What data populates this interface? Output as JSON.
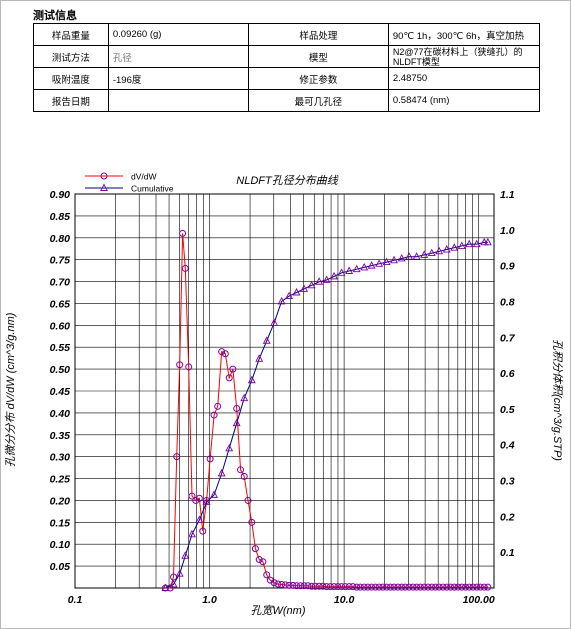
{
  "section_title": "测试信息",
  "info_table": [
    [
      {
        "label": "样品重量",
        "value": "0.09260 (g)"
      },
      {
        "label": "样品处理",
        "value": "90℃ 1h，300℃ 6h，真空加热"
      }
    ],
    [
      {
        "label": "测试方法",
        "value": "孔径"
      },
      {
        "label": "模型",
        "value": "N2@77在碳材料上（狭缝孔）的 NLDFT模型"
      }
    ],
    [
      {
        "label": "吸附温度",
        "value": "-196度"
      },
      {
        "label": "修正参数",
        "value": "2.48750"
      }
    ],
    [
      {
        "label": "报告日期",
        "value": ""
      },
      {
        "label": "最可几孔径",
        "value": "0.58474 (nm)"
      }
    ]
  ],
  "chart_data": {
    "type": "line",
    "title": "NLDFT孔径分布曲线",
    "xlabel": "孔宽W(nm)",
    "ylabel_left": "孔微分分布 dV/dW (cm^3/g.nm)",
    "ylabel_right": "孔积分体积(cm^3/g.STP)",
    "x_scale": "log",
    "xlim": [
      0.1,
      130
    ],
    "ylim_left": [
      0,
      0.9
    ],
    "ylim_right": [
      0,
      1.1
    ],
    "x_ticks": [
      "0.1",
      "1.0",
      "10.0",
      "100.00"
    ],
    "y_ticks_left": [
      "0.05",
      "0.10",
      "0.15",
      "0.20",
      "0.25",
      "0.30",
      "0.35",
      "0.40",
      "0.45",
      "0.50",
      "0.55",
      "0.60",
      "0.65",
      "0.70",
      "0.75",
      "0.80",
      "0.85",
      "0.90"
    ],
    "y_ticks_right": [
      "0.1",
      "0.2",
      "0.3",
      "0.4",
      "0.5",
      "0.6",
      "0.7",
      "0.8",
      "0.9",
      "1.0",
      "1.1"
    ],
    "grid": true,
    "legend_position": "top-left",
    "series": [
      {
        "name": "dV/dW",
        "axis": "left",
        "marker": "circle",
        "color": "#ff0000",
        "marker_color": "#8000a0",
        "x": [
          0.47,
          0.51,
          0.54,
          0.57,
          0.6,
          0.63,
          0.66,
          0.7,
          0.74,
          0.79,
          0.84,
          0.89,
          0.95,
          1.01,
          1.08,
          1.15,
          1.23,
          1.31,
          1.4,
          1.49,
          1.59,
          1.7,
          1.81,
          1.93,
          2.06,
          2.19,
          2.34,
          2.49,
          2.66,
          2.83,
          3.02,
          3.22,
          3.43,
          3.66,
          3.9,
          4.16,
          4.43,
          4.73,
          5.04,
          5.38,
          5.73,
          6.11,
          6.52,
          6.95,
          7.41,
          7.9,
          8.42,
          8.98,
          9.58,
          10.2,
          10.9,
          11.6,
          12.4,
          13.2,
          14.1,
          15.0,
          16.0,
          17.1,
          18.2,
          19.4,
          20.7,
          22.1,
          23.5,
          25.1,
          26.8,
          28.5,
          30.4,
          32.5,
          34.6,
          36.9,
          39.4,
          42.0,
          44.8,
          47.8,
          50.9,
          54.3,
          57.9,
          61.8,
          65.9,
          70.2,
          74.9,
          79.8,
          85.1,
          90.8,
          96.8,
          103,
          110,
          117
        ],
        "y": [
          0.0,
          0.0,
          0.025,
          0.3,
          0.51,
          0.81,
          0.73,
          0.505,
          0.21,
          0.2,
          0.205,
          0.13,
          0.2,
          0.295,
          0.395,
          0.415,
          0.54,
          0.535,
          0.48,
          0.5,
          0.41,
          0.27,
          0.255,
          0.2,
          0.15,
          0.09,
          0.065,
          0.06,
          0.03,
          0.018,
          0.012,
          0.009,
          0.008,
          0.007,
          0.006,
          0.006,
          0.005,
          0.005,
          0.005,
          0.005,
          0.004,
          0.004,
          0.004,
          0.004,
          0.003,
          0.003,
          0.003,
          0.003,
          0.003,
          0.003,
          0.003,
          0.003,
          0.002,
          0.002,
          0.002,
          0.002,
          0.002,
          0.002,
          0.002,
          0.002,
          0.002,
          0.002,
          0.002,
          0.002,
          0.002,
          0.002,
          0.002,
          0.002,
          0.002,
          0.002,
          0.002,
          0.002,
          0.002,
          0.002,
          0.002,
          0.002,
          0.002,
          0.002,
          0.002,
          0.002,
          0.002,
          0.002,
          0.002,
          0.002,
          0.002,
          0.002,
          0.002,
          0.002
        ]
      },
      {
        "name": "Cumulative",
        "axis": "right",
        "marker": "triangle",
        "color": "#000080",
        "marker_color": "#8000a0",
        "x": [
          0.47,
          0.54,
          0.6,
          0.66,
          0.74,
          0.84,
          0.95,
          1.08,
          1.23,
          1.4,
          1.59,
          1.81,
          2.06,
          2.34,
          2.66,
          3.02,
          3.43,
          3.9,
          4.43,
          5.04,
          5.73,
          6.52,
          7.41,
          8.42,
          9.58,
          10.9,
          12.4,
          14.1,
          16.0,
          18.2,
          20.7,
          23.5,
          26.8,
          30.4,
          34.6,
          39.4,
          44.8,
          50.9,
          57.9,
          65.9,
          74.9,
          85.1,
          96.8,
          110,
          117
        ],
        "y": [
          0.0,
          0.01,
          0.04,
          0.09,
          0.15,
          0.19,
          0.24,
          0.26,
          0.32,
          0.39,
          0.46,
          0.53,
          0.58,
          0.64,
          0.69,
          0.74,
          0.8,
          0.815,
          0.825,
          0.835,
          0.845,
          0.855,
          0.86,
          0.87,
          0.88,
          0.885,
          0.89,
          0.895,
          0.9,
          0.905,
          0.91,
          0.915,
          0.92,
          0.925,
          0.925,
          0.93,
          0.935,
          0.94,
          0.945,
          0.95,
          0.955,
          0.96,
          0.96,
          0.965,
          0.965
        ]
      }
    ]
  }
}
